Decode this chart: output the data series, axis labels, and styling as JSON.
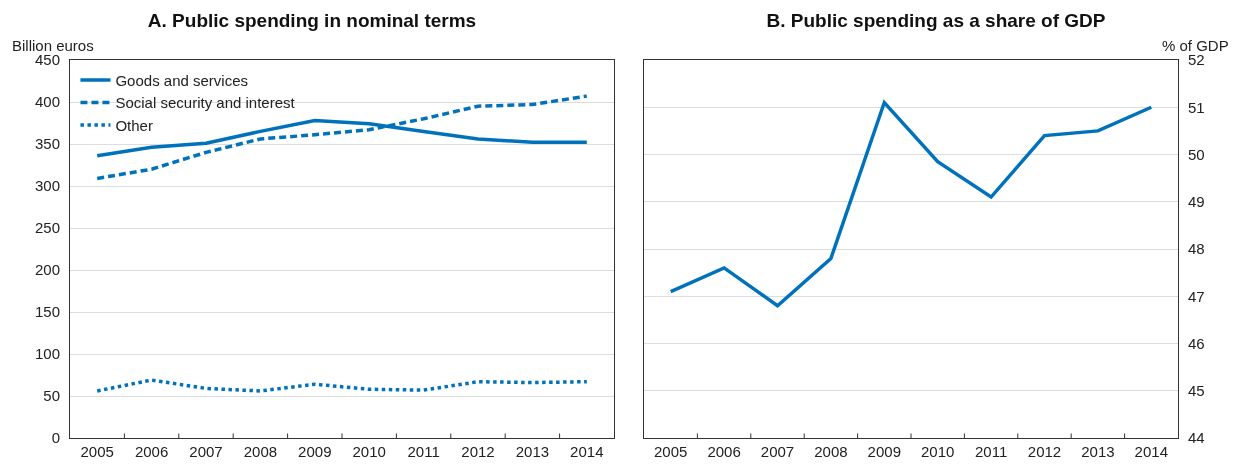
{
  "chart_data": [
    {
      "type": "line",
      "title": "A. Public spending in nominal terms",
      "ylabel": "Billion euros",
      "categories": [
        "2005",
        "2006",
        "2007",
        "2008",
        "2009",
        "2010",
        "2011",
        "2012",
        "2013",
        "2014"
      ],
      "series": [
        {
          "name": "Goods and services",
          "color": "#0072bc",
          "line_style": "solid",
          "values": [
            336,
            346,
            351,
            365,
            378,
            374,
            365,
            356,
            352,
            352
          ]
        },
        {
          "name": "Social security and interest",
          "color": "#0072bc",
          "line_style": "dashed",
          "values": [
            309,
            320,
            340,
            356,
            361,
            367,
            380,
            395,
            397,
            407
          ]
        },
        {
          "name": "Other",
          "color": "#0072bc",
          "line_style": "dotted",
          "values": [
            56,
            69,
            59,
            56,
            64,
            58,
            57,
            67,
            66,
            67
          ]
        }
      ],
      "ylim": [
        0,
        450
      ],
      "yticks": [
        0,
        50,
        100,
        150,
        200,
        250,
        300,
        350,
        400,
        450
      ],
      "grid": "y",
      "legend": "top left",
      "marker": "none"
    },
    {
      "type": "line",
      "title": "B. Public spending as a share of GDP",
      "ylabel": "% of GDP",
      "categories": [
        "2005",
        "2006",
        "2007",
        "2008",
        "2009",
        "2010",
        "2011",
        "2012",
        "2013",
        "2014"
      ],
      "series": [
        {
          "color": "#0072bc",
          "line_style": "solid",
          "values": [
            47.1,
            47.6,
            46.8,
            47.8,
            51.1,
            49.85,
            49.1,
            50.4,
            50.5,
            51.0
          ]
        }
      ],
      "ylim": [
        44,
        52
      ],
      "yticks": [
        44,
        45,
        46,
        47,
        48,
        49,
        50,
        51,
        52
      ],
      "grid": "y",
      "legend": false,
      "marker": "none"
    }
  ]
}
